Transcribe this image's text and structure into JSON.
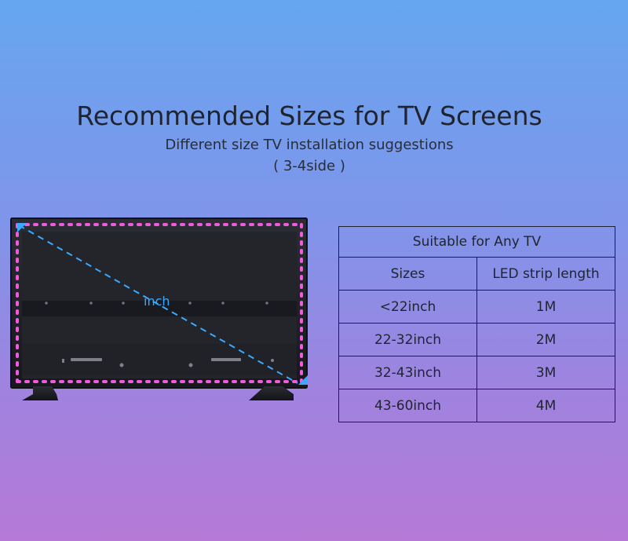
{
  "title": "Recommended Sizes for TV Screens",
  "subtitle": "Different size TV installation suggestions",
  "note": "( 3-4side )",
  "tv": {
    "label": "inch",
    "icons": {
      "start_marker": "triangle-marker",
      "end_marker": "triangle-marker"
    },
    "colors": {
      "tv_frame": "#17181d",
      "screen": "#26282d",
      "strip_led": "#f05bdd",
      "measurement_line": "#3ba9ff"
    }
  },
  "table": {
    "title": "Suitable for Any TV",
    "headers": [
      "Sizes",
      "LED strip length"
    ],
    "rows": [
      {
        "size": "<22inch",
        "length": "1M"
      },
      {
        "size": "22-32inch",
        "length": "2M"
      },
      {
        "size": "32-43inch",
        "length": "3M"
      },
      {
        "size": "43-60inch",
        "length": "4M"
      }
    ]
  }
}
